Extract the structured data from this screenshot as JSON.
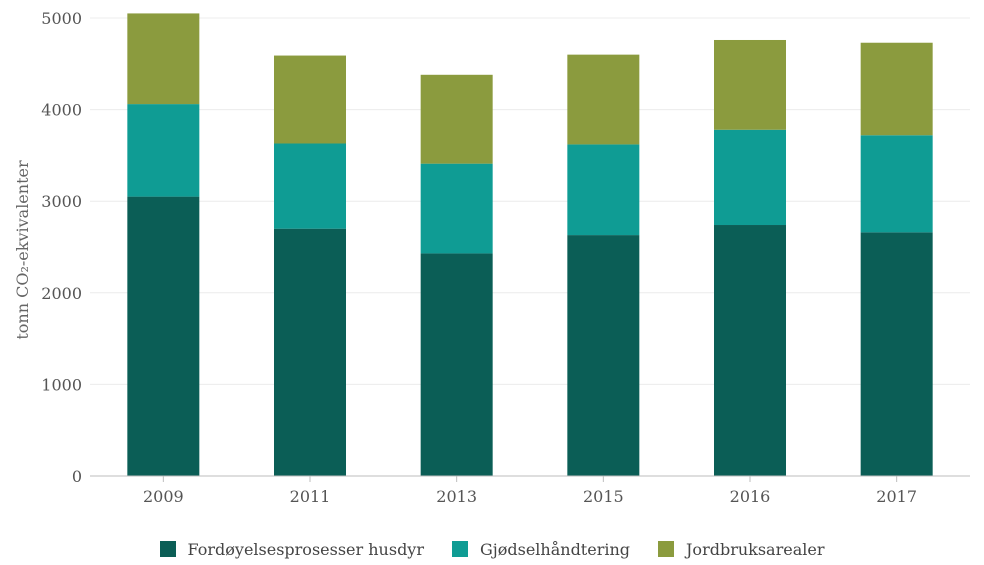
{
  "chart_data": {
    "type": "bar",
    "stacked": true,
    "categories": [
      "2009",
      "2011",
      "2013",
      "2015",
      "2016",
      "2017"
    ],
    "series": [
      {
        "name": "Fordøyelsesprosesser husdyr",
        "color": "#0b5e56",
        "values": [
          3050,
          2700,
          2430,
          2630,
          2740,
          2660
        ]
      },
      {
        "name": "Gjødselhåndtering",
        "color": "#0f9c94",
        "values": [
          1010,
          930,
          980,
          990,
          1040,
          1060
        ]
      },
      {
        "name": "Jordbruksarealer",
        "color": "#8b9b3e",
        "values": [
          990,
          960,
          970,
          980,
          980,
          1010
        ]
      }
    ],
    "ylabel": "tonn CO₂-ekvivalenter",
    "ylim": [
      0,
      5000
    ],
    "yticks": [
      "0",
      "1000",
      "2000",
      "3000",
      "4000",
      "5000"
    ],
    "grid": true,
    "legend_position": "bottom"
  }
}
